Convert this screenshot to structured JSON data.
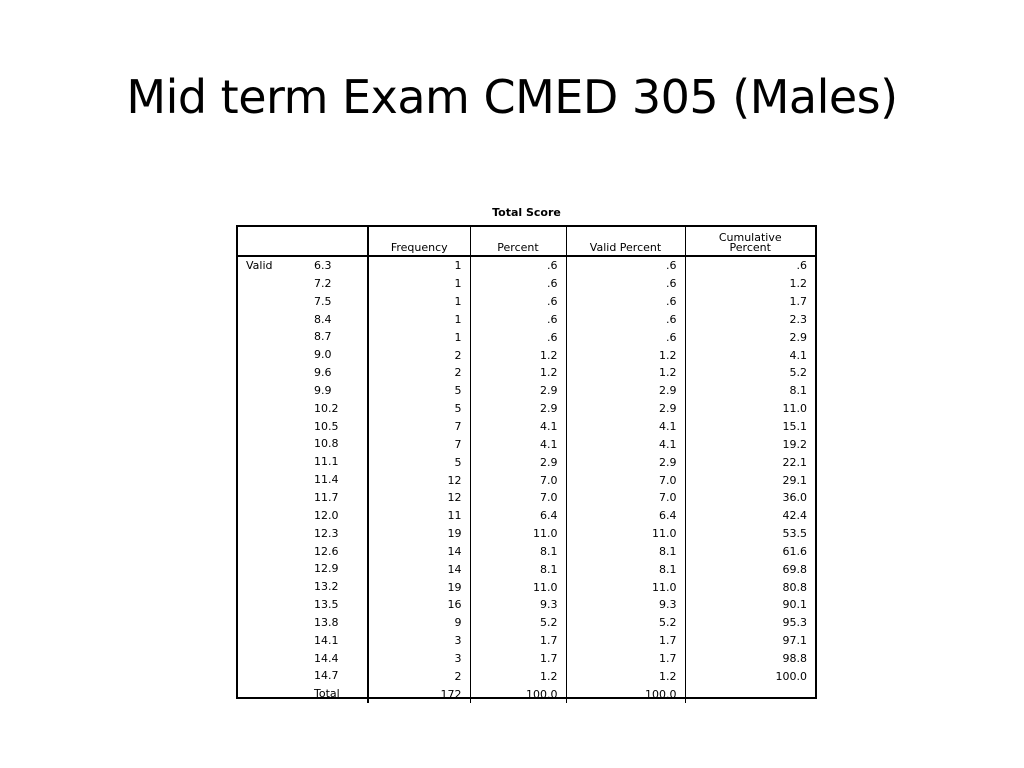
{
  "slide": {
    "title": "Mid term Exam CMED 305 (Males)"
  },
  "table": {
    "caption": "Total Score",
    "headers": {
      "frequency": "Frequency",
      "percent": "Percent",
      "valid_percent": "Valid Percent",
      "cumulative_percent_line1": "Cumulative",
      "cumulative_percent_line2": "Percent"
    },
    "group_label": "Valid",
    "rows": [
      {
        "value": "6.3",
        "frequency": "1",
        "percent": ".6",
        "valid_percent": ".6",
        "cumulative_percent": ".6"
      },
      {
        "value": "7.2",
        "frequency": "1",
        "percent": ".6",
        "valid_percent": ".6",
        "cumulative_percent": "1.2"
      },
      {
        "value": "7.5",
        "frequency": "1",
        "percent": ".6",
        "valid_percent": ".6",
        "cumulative_percent": "1.7"
      },
      {
        "value": "8.4",
        "frequency": "1",
        "percent": ".6",
        "valid_percent": ".6",
        "cumulative_percent": "2.3"
      },
      {
        "value": "8.7",
        "frequency": "1",
        "percent": ".6",
        "valid_percent": ".6",
        "cumulative_percent": "2.9"
      },
      {
        "value": "9.0",
        "frequency": "2",
        "percent": "1.2",
        "valid_percent": "1.2",
        "cumulative_percent": "4.1"
      },
      {
        "value": "9.6",
        "frequency": "2",
        "percent": "1.2",
        "valid_percent": "1.2",
        "cumulative_percent": "5.2"
      },
      {
        "value": "9.9",
        "frequency": "5",
        "percent": "2.9",
        "valid_percent": "2.9",
        "cumulative_percent": "8.1"
      },
      {
        "value": "10.2",
        "frequency": "5",
        "percent": "2.9",
        "valid_percent": "2.9",
        "cumulative_percent": "11.0"
      },
      {
        "value": "10.5",
        "frequency": "7",
        "percent": "4.1",
        "valid_percent": "4.1",
        "cumulative_percent": "15.1"
      },
      {
        "value": "10.8",
        "frequency": "7",
        "percent": "4.1",
        "valid_percent": "4.1",
        "cumulative_percent": "19.2"
      },
      {
        "value": "11.1",
        "frequency": "5",
        "percent": "2.9",
        "valid_percent": "2.9",
        "cumulative_percent": "22.1"
      },
      {
        "value": "11.4",
        "frequency": "12",
        "percent": "7.0",
        "valid_percent": "7.0",
        "cumulative_percent": "29.1"
      },
      {
        "value": "11.7",
        "frequency": "12",
        "percent": "7.0",
        "valid_percent": "7.0",
        "cumulative_percent": "36.0"
      },
      {
        "value": "12.0",
        "frequency": "11",
        "percent": "6.4",
        "valid_percent": "6.4",
        "cumulative_percent": "42.4"
      },
      {
        "value": "12.3",
        "frequency": "19",
        "percent": "11.0",
        "valid_percent": "11.0",
        "cumulative_percent": "53.5"
      },
      {
        "value": "12.6",
        "frequency": "14",
        "percent": "8.1",
        "valid_percent": "8.1",
        "cumulative_percent": "61.6"
      },
      {
        "value": "12.9",
        "frequency": "14",
        "percent": "8.1",
        "valid_percent": "8.1",
        "cumulative_percent": "69.8"
      },
      {
        "value": "13.2",
        "frequency": "19",
        "percent": "11.0",
        "valid_percent": "11.0",
        "cumulative_percent": "80.8"
      },
      {
        "value": "13.5",
        "frequency": "16",
        "percent": "9.3",
        "valid_percent": "9.3",
        "cumulative_percent": "90.1"
      },
      {
        "value": "13.8",
        "frequency": "9",
        "percent": "5.2",
        "valid_percent": "5.2",
        "cumulative_percent": "95.3"
      },
      {
        "value": "14.1",
        "frequency": "3",
        "percent": "1.7",
        "valid_percent": "1.7",
        "cumulative_percent": "97.1"
      },
      {
        "value": "14.4",
        "frequency": "3",
        "percent": "1.7",
        "valid_percent": "1.7",
        "cumulative_percent": "98.8"
      },
      {
        "value": "14.7",
        "frequency": "2",
        "percent": "1.2",
        "valid_percent": "1.2",
        "cumulative_percent": "100.0"
      },
      {
        "value": "Total",
        "frequency": "172",
        "percent": "100.0",
        "valid_percent": "100.0",
        "cumulative_percent": ""
      }
    ]
  }
}
